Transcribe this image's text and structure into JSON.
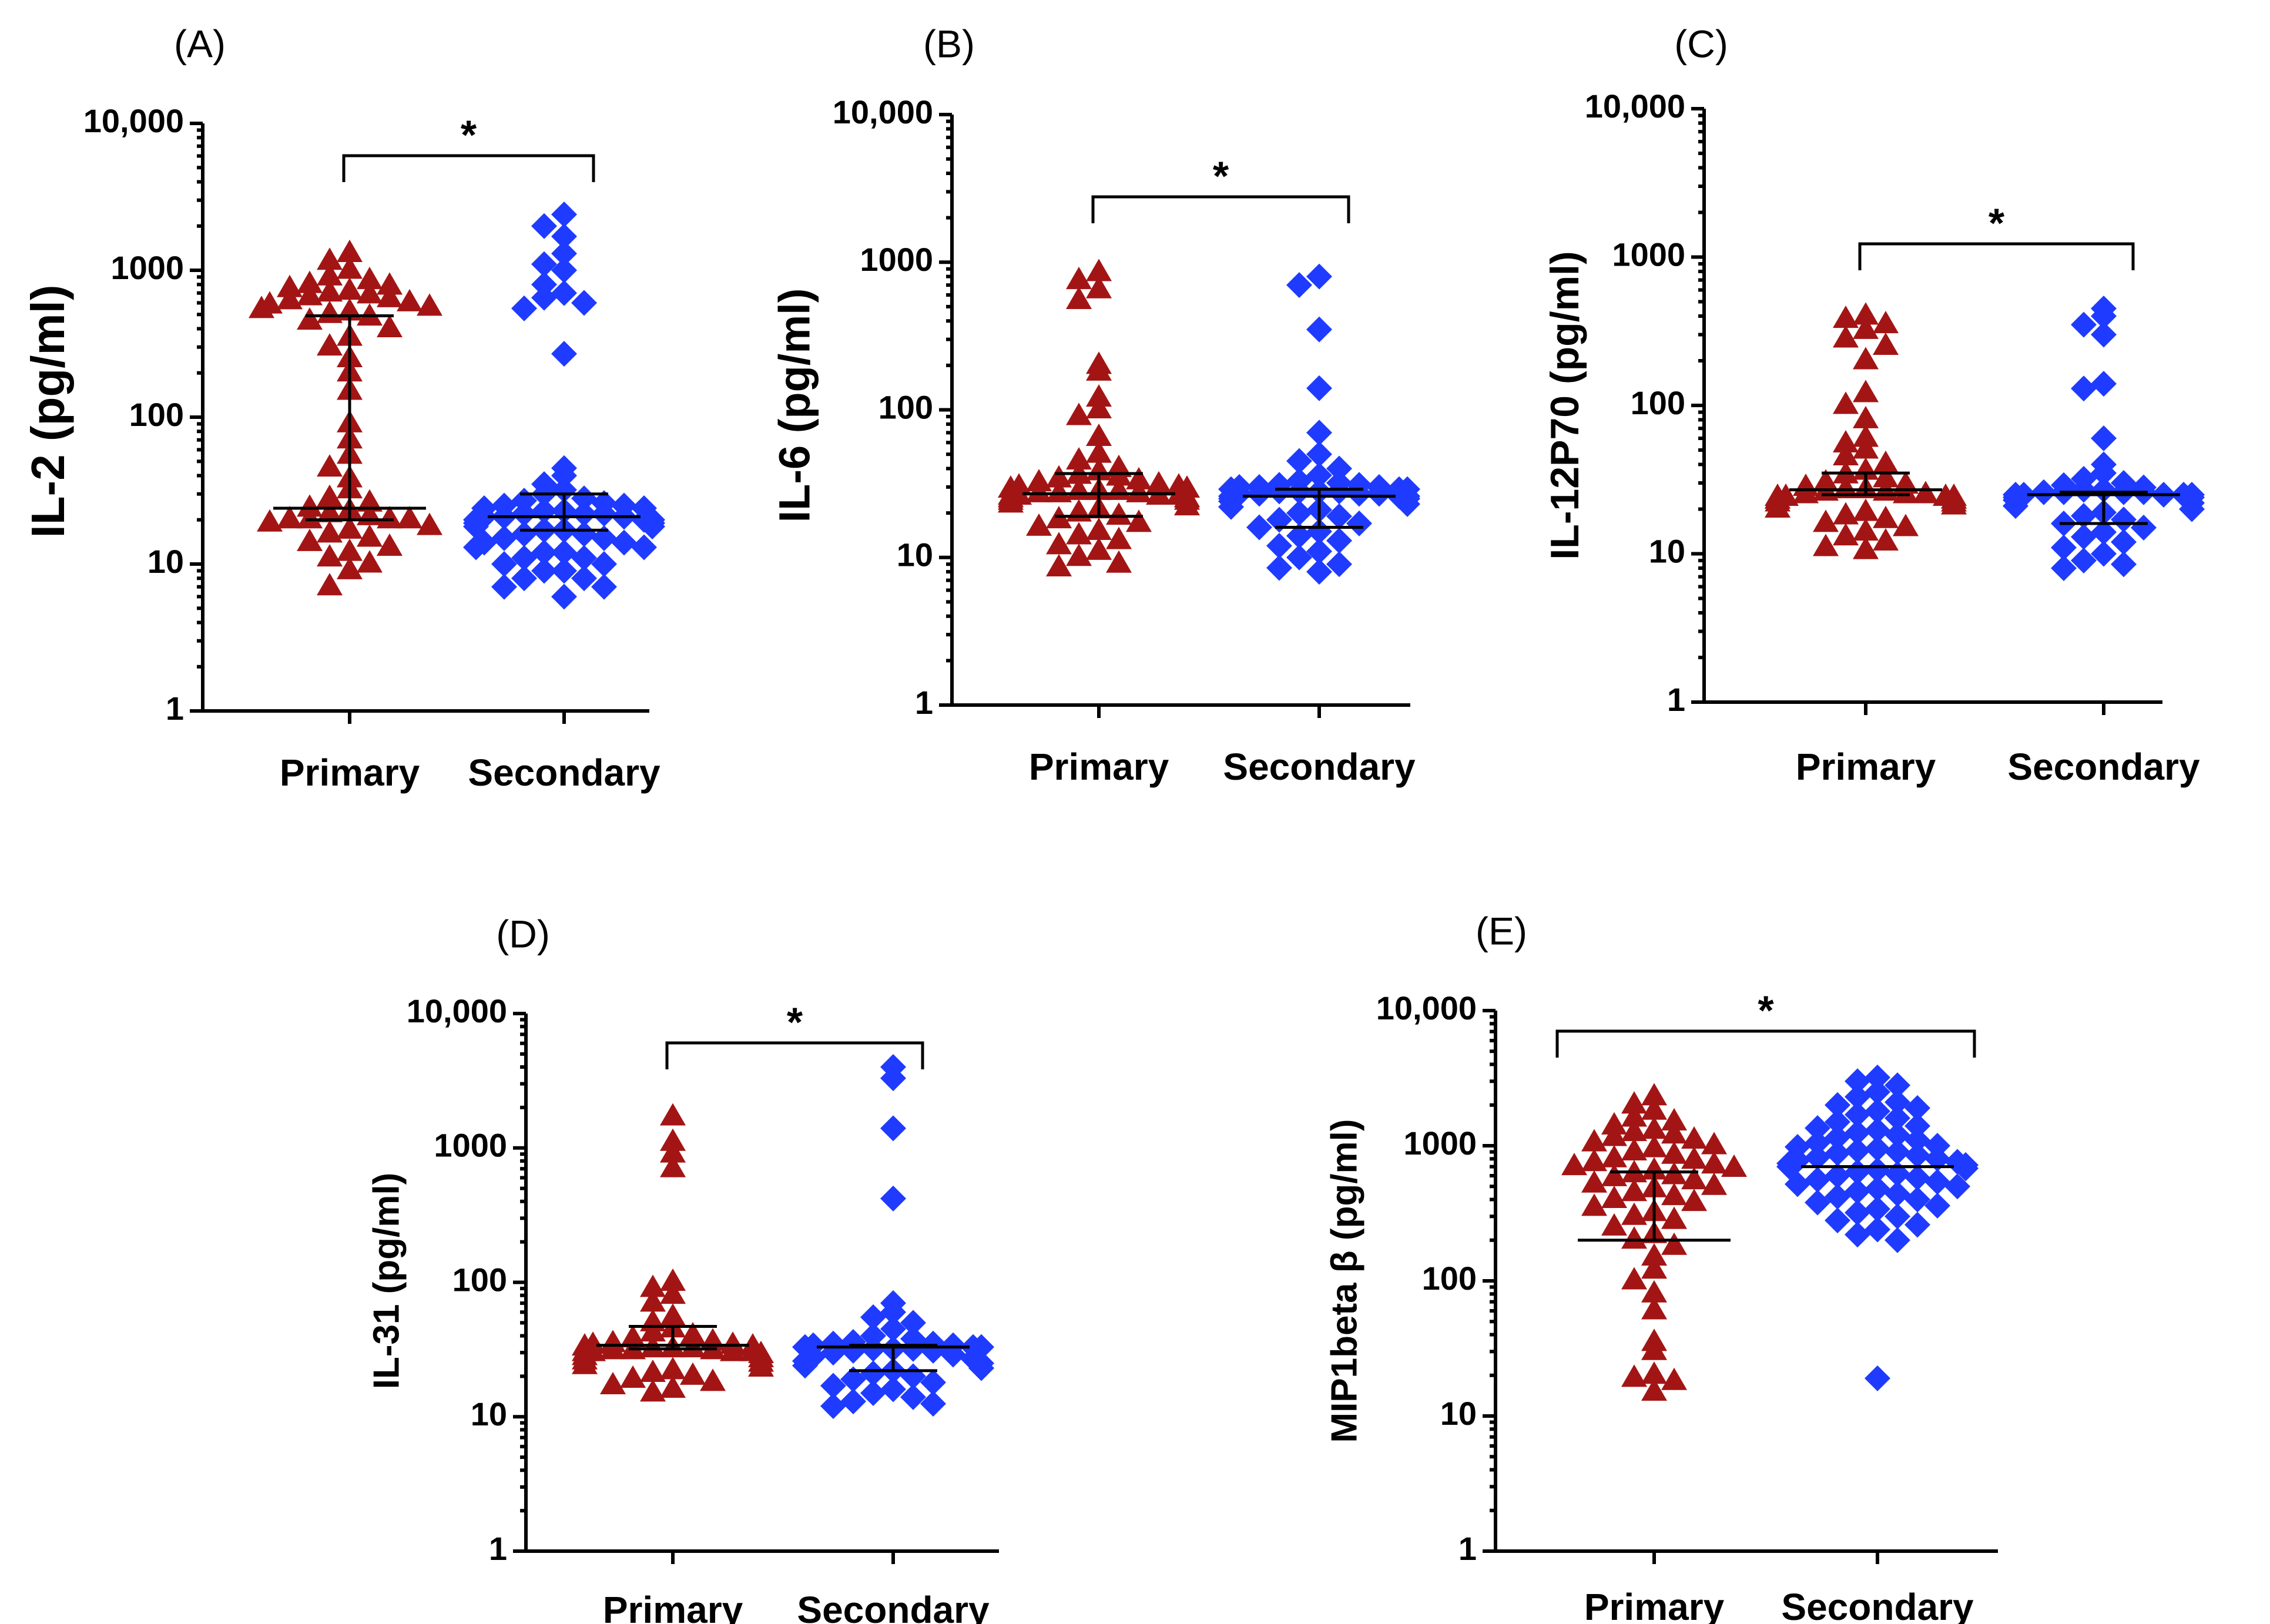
{
  "figure": {
    "colors": {
      "primary": "#A31515",
      "secondary": "#1F3BFF",
      "axis": "#000000"
    },
    "marker_shapes": {
      "primary": "triangle",
      "secondary": "diamond"
    }
  },
  "chart_data": [
    {
      "type": "scatter",
      "panel_label": "(A)",
      "ylabel": "IL-2 (pg/ml)",
      "yscale": "log",
      "ylim": [
        1,
        10000
      ],
      "yticks": [
        1,
        10,
        100,
        1000,
        10000
      ],
      "ytick_labels": [
        "1",
        "10",
        "100",
        "1000",
        "10,000"
      ],
      "categories": [
        "Primary",
        "Secondary"
      ],
      "significance": "*",
      "series": [
        {
          "values": [
            1300,
            1150,
            1000,
            900,
            850,
            800,
            780,
            750,
            720,
            700,
            680,
            660,
            640,
            620,
            600,
            580,
            560,
            540,
            520,
            500,
            480,
            450,
            400,
            350,
            300,
            250,
            200,
            150,
            90,
            70,
            55,
            45,
            38,
            32,
            28,
            26,
            24,
            23,
            22,
            21,
            20,
            20,
            20,
            20,
            19,
            18,
            17,
            16,
            15,
            14,
            13,
            12,
            11,
            10,
            9,
            7
          ],
          "summary_lines": [
            490,
            24,
            20
          ]
        },
        {
          "values": [
            2400,
            2000,
            1700,
            1300,
            1100,
            1000,
            800,
            700,
            650,
            600,
            550,
            270,
            45,
            40,
            35,
            32,
            30,
            28,
            27,
            26,
            25,
            25,
            24,
            24,
            23,
            23,
            22,
            22,
            22,
            21,
            21,
            21,
            20,
            20,
            20,
            19,
            19,
            18,
            18,
            17,
            17,
            16,
            16,
            15,
            15,
            14,
            14,
            13,
            13,
            12,
            12,
            11,
            11,
            10,
            10,
            9,
            9,
            8,
            8,
            7,
            7,
            6
          ],
          "summary_lines": [
            30,
            21,
            17
          ]
        }
      ]
    },
    {
      "type": "scatter",
      "panel_label": "(B)",
      "ylabel": "IL-6 (pg/ml)",
      "yscale": "log",
      "ylim": [
        1,
        10000
      ],
      "yticks": [
        1,
        10,
        100,
        1000,
        10000
      ],
      "ytick_labels": [
        "1",
        "10",
        "100",
        "1000",
        "10,000"
      ],
      "categories": [
        "Primary",
        "Secondary"
      ],
      "significance": "*",
      "series": [
        {
          "values": [
            850,
            750,
            650,
            550,
            200,
            180,
            120,
            100,
            90,
            65,
            50,
            45,
            40,
            38,
            36,
            35,
            34,
            33,
            32,
            31,
            30,
            30,
            29,
            29,
            28,
            28,
            28,
            27,
            27,
            27,
            26,
            26,
            26,
            26,
            25,
            25,
            25,
            25,
            25,
            24,
            24,
            23,
            22,
            21,
            20,
            19,
            18,
            17,
            16,
            15,
            14,
            13,
            12,
            11,
            10,
            9,
            8.5
          ],
          "summary_lines": [
            37,
            27,
            19
          ]
        },
        {
          "values": [
            800,
            700,
            350,
            140,
            70,
            50,
            45,
            40,
            36,
            33,
            32,
            31,
            31,
            30,
            30,
            30,
            29,
            29,
            29,
            28,
            28,
            28,
            28,
            27,
            27,
            27,
            27,
            26,
            26,
            26,
            25,
            25,
            24,
            23,
            22,
            21,
            20,
            19,
            18,
            17,
            16,
            15,
            14,
            13,
            12,
            11,
            10,
            9,
            8.5,
            8
          ],
          "summary_lines": [
            29,
            26,
            16
          ]
        }
      ]
    },
    {
      "type": "scatter",
      "panel_label": "(C)",
      "ylabel": "IL-12P70 (pg/ml)",
      "yscale": "log",
      "ylim": [
        1,
        10000
      ],
      "yticks": [
        1,
        10,
        100,
        1000,
        10000
      ],
      "ytick_labels": [
        "1",
        "10",
        "100",
        "1000",
        "10,000"
      ],
      "categories": [
        "Primary",
        "Secondary"
      ],
      "significance": "*",
      "series": [
        {
          "values": [
            400,
            380,
            350,
            320,
            280,
            250,
            200,
            120,
            100,
            80,
            60,
            55,
            50,
            45,
            40,
            36,
            34,
            32,
            30,
            29,
            28,
            27,
            27,
            26,
            26,
            25,
            25,
            25,
            24,
            24,
            24,
            24,
            23,
            23,
            23,
            23,
            23,
            22,
            22,
            21,
            20,
            19,
            18,
            17,
            16,
            15,
            14,
            13,
            12,
            11,
            10.5
          ],
          "summary_lines": [
            35,
            27,
            25
          ]
        },
        {
          "values": [
            450,
            400,
            350,
            300,
            140,
            130,
            60,
            40,
            35,
            32,
            30,
            29,
            28,
            27,
            27,
            26,
            26,
            26,
            26,
            25,
            25,
            25,
            25,
            25,
            24,
            24,
            23,
            22,
            21,
            20,
            19,
            18,
            17,
            16,
            15,
            14,
            13,
            12,
            11,
            10,
            9,
            8.5,
            8
          ],
          "summary_lines": [
            26,
            25,
            16
          ]
        }
      ]
    },
    {
      "type": "scatter",
      "panel_label": "(D)",
      "ylabel": "IL-31 (pg/ml)",
      "yscale": "log",
      "ylim": [
        1,
        10000
      ],
      "yticks": [
        1,
        10,
        100,
        1000,
        10000
      ],
      "ytick_labels": [
        "1",
        "10",
        "100",
        "1000",
        "10,000"
      ],
      "categories": [
        "Primary",
        "Secondary"
      ],
      "significance": "*",
      "series": [
        {
          "values": [
            1700,
            1100,
            900,
            700,
            100,
            90,
            80,
            70,
            55,
            50,
            45,
            42,
            40,
            38,
            36,
            35,
            34,
            34,
            33,
            33,
            32,
            32,
            32,
            31,
            31,
            31,
            30,
            30,
            30,
            30,
            29,
            28,
            27,
            26,
            25,
            24,
            23,
            22,
            21,
            20,
            19,
            18,
            17,
            16,
            15
          ],
          "summary_lines": [
            47,
            34,
            32
          ]
        },
        {
          "values": [
            4000,
            3300,
            1400,
            420,
            70,
            60,
            55,
            50,
            45,
            40,
            38,
            36,
            35,
            35,
            34,
            34,
            33,
            33,
            33,
            32,
            32,
            32,
            31,
            31,
            30,
            29,
            28,
            27,
            26,
            25,
            24,
            23,
            22,
            21,
            20,
            19,
            18,
            17,
            16,
            15,
            14,
            13,
            12.5,
            12
          ],
          "summary_lines": [
            34,
            33,
            22
          ]
        }
      ]
    },
    {
      "type": "scatter",
      "panel_label": "(E)",
      "ylabel": "MIP1beta β (pg/ml)",
      "yscale": "log",
      "ylim": [
        1,
        10000
      ],
      "yticks": [
        1,
        10,
        100,
        1000,
        10000
      ],
      "ytick_labels": [
        "1",
        "10",
        "100",
        "1000",
        "10,000"
      ],
      "categories": [
        "Primary",
        "Secondary"
      ],
      "significance": "*",
      "series": [
        {
          "values": [
            2300,
            2000,
            1800,
            1600,
            1500,
            1400,
            1300,
            1250,
            1200,
            1150,
            1100,
            1050,
            1000,
            950,
            900,
            850,
            800,
            780,
            750,
            720,
            700,
            680,
            650,
            620,
            600,
            580,
            550,
            520,
            500,
            480,
            450,
            420,
            400,
            380,
            350,
            320,
            300,
            280,
            250,
            220,
            200,
            180,
            150,
            120,
            100,
            80,
            60,
            35,
            30,
            20,
            19,
            18,
            15
          ],
          "summary_lines": [
            640,
            200
          ]
        },
        {
          "values": [
            3200,
            3000,
            2800,
            2500,
            2300,
            2100,
            2000,
            1900,
            1800,
            1700,
            1600,
            1500,
            1400,
            1350,
            1300,
            1250,
            1200,
            1150,
            1100,
            1050,
            1000,
            980,
            950,
            920,
            900,
            880,
            850,
            820,
            800,
            780,
            760,
            740,
            720,
            700,
            680,
            660,
            640,
            620,
            600,
            580,
            560,
            540,
            520,
            500,
            480,
            460,
            440,
            420,
            400,
            380,
            360,
            340,
            320,
            300,
            280,
            260,
            240,
            220,
            200,
            19
          ],
          "summary_lines": [
            700,
            700
          ]
        }
      ]
    }
  ]
}
